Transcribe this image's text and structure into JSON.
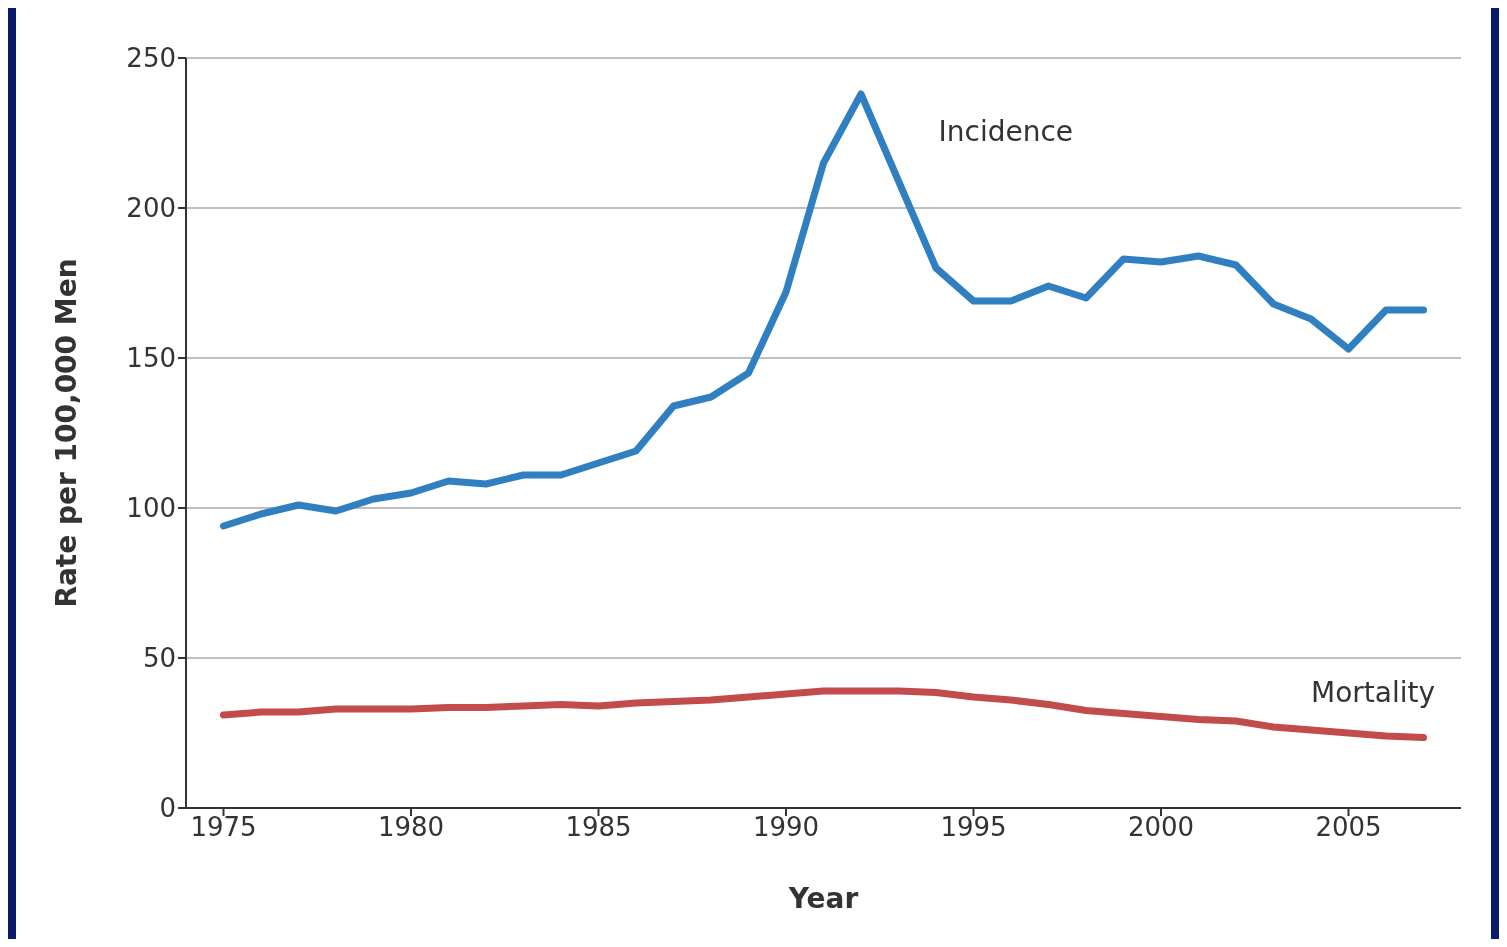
{
  "chart_data": {
    "type": "line",
    "xlabel": "Year",
    "ylabel": "Rate per 100,000 Men",
    "x": [
      1975,
      1976,
      1977,
      1978,
      1979,
      1980,
      1981,
      1982,
      1983,
      1984,
      1985,
      1986,
      1987,
      1988,
      1989,
      1990,
      1991,
      1992,
      1993,
      1994,
      1995,
      1996,
      1997,
      1998,
      1999,
      2000,
      2001,
      2002,
      2003,
      2004,
      2005,
      2006,
      2007
    ],
    "series": [
      {
        "name": "Incidence",
        "color": "#2f7fc1",
        "values": [
          94,
          98,
          101,
          99,
          103,
          105,
          109,
          108,
          111,
          111,
          115,
          119,
          134,
          137,
          145,
          172,
          215,
          238,
          209,
          180,
          169,
          169,
          174,
          170,
          183,
          182,
          184,
          181,
          168,
          163,
          153,
          166,
          166
        ]
      },
      {
        "name": "Mortality",
        "color": "#c24b4b",
        "values": [
          31,
          32,
          32,
          33,
          33,
          33,
          33.5,
          33.5,
          34,
          34.5,
          34,
          35,
          35.5,
          36,
          37,
          38,
          39,
          39,
          39,
          38.5,
          37,
          36,
          34.5,
          32.5,
          31.5,
          30.5,
          29.5,
          29,
          27,
          26,
          25,
          24,
          23.5
        ]
      }
    ],
    "xlim": [
      1974,
      2008
    ],
    "xticks": [
      1975,
      1980,
      1985,
      1990,
      1995,
      2000,
      2005
    ],
    "ylim": [
      0,
      250
    ],
    "yticks": [
      0,
      50,
      100,
      150,
      200,
      250
    ],
    "grid": "y",
    "marker": "none",
    "line_style": "solid"
  }
}
